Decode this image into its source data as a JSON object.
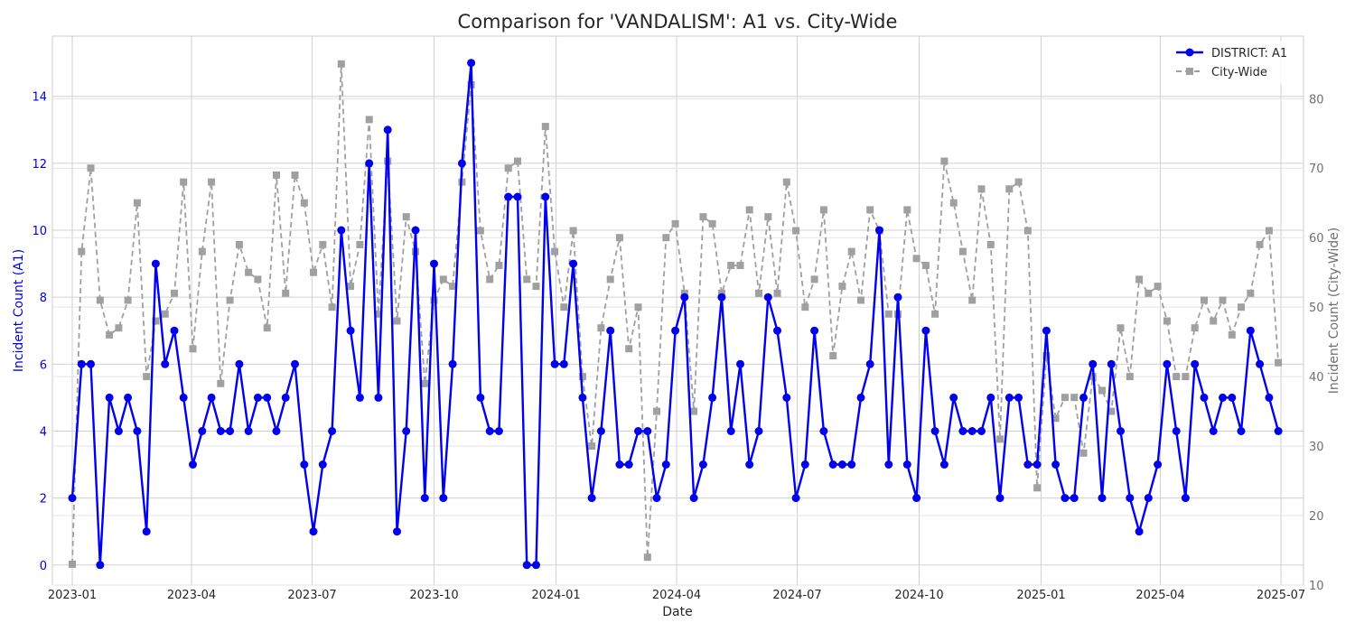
{
  "chart_data": {
    "type": "line",
    "title": "Comparison for 'VANDALISM': A1 vs. City-Wide",
    "xlabel": "Date",
    "ylabel_left": "Incident Count (A1)",
    "ylabel_right": "Incident Count (City-Wide)",
    "x_start": "2023-01-01",
    "x_step": "week",
    "x_ticks": [
      "2023-01",
      "2023-04",
      "2023-07",
      "2023-10",
      "2024-01",
      "2024-04",
      "2024-07",
      "2024-10",
      "2025-01",
      "2025-04",
      "2025-07"
    ],
    "ylim_left": [
      -0.6,
      15.8
    ],
    "ylim_right": [
      10,
      89
    ],
    "yticks_left": [
      0,
      2,
      4,
      6,
      8,
      10,
      12,
      14
    ],
    "yticks_right": [
      10,
      20,
      30,
      40,
      50,
      60,
      70,
      80
    ],
    "grid": true,
    "legend_position": "top-right",
    "colors": {
      "district": "#0000ee",
      "city": "#a0a0a0",
      "left_axis_text": "#0000ee",
      "right_axis_text": "#707070",
      "grid": "#d0d0d0"
    },
    "series": [
      {
        "name": "DISTRICT: A1",
        "axis": "left",
        "style": "solid-circle",
        "values": [
          2,
          6,
          6,
          0,
          5,
          4,
          5,
          4,
          1,
          9,
          6,
          7,
          5,
          3,
          4,
          5,
          4,
          4,
          6,
          4,
          5,
          5,
          4,
          5,
          6,
          3,
          1,
          3,
          4,
          10,
          7,
          5,
          12,
          5,
          13,
          1,
          4,
          10,
          2,
          9,
          2,
          6,
          12,
          15,
          5,
          4,
          4,
          11,
          11,
          0,
          0,
          11,
          6,
          6,
          9,
          5,
          2,
          4,
          7,
          3,
          3,
          4,
          4,
          2,
          3,
          7,
          8,
          2,
          3,
          5,
          8,
          4,
          6,
          3,
          4,
          8,
          7,
          5,
          2,
          3,
          7,
          4,
          3,
          3,
          3,
          5,
          6,
          10,
          3,
          8,
          3,
          2,
          7,
          4,
          3,
          5,
          4,
          4,
          4,
          5,
          2,
          5,
          5,
          3,
          3,
          7,
          3,
          2,
          2,
          5,
          6,
          2,
          6,
          4,
          2,
          1,
          2,
          3,
          6,
          4,
          2,
          6,
          5,
          4,
          5,
          5,
          4,
          7,
          6,
          5,
          4
        ]
      },
      {
        "name": "City-Wide",
        "axis": "right",
        "style": "dashed-square",
        "values": [
          13,
          58,
          70,
          51,
          46,
          47,
          51,
          65,
          40,
          48,
          49,
          52,
          68,
          44,
          58,
          68,
          39,
          51,
          59,
          55,
          54,
          47,
          69,
          52,
          69,
          65,
          55,
          59,
          50,
          85,
          53,
          59,
          77,
          49,
          71,
          48,
          63,
          58,
          39,
          51,
          54,
          53,
          68,
          82,
          61,
          54,
          56,
          70,
          71,
          54,
          53,
          76,
          58,
          50,
          61,
          40,
          30,
          47,
          54,
          60,
          44,
          50,
          14,
          35,
          60,
          62,
          52,
          35,
          63,
          62,
          52,
          56,
          56,
          64,
          52,
          63,
          52,
          68,
          61,
          50,
          54,
          64,
          43,
          53,
          58,
          51,
          64,
          61,
          49,
          49,
          64,
          57,
          56,
          49,
          71,
          65,
          58,
          51,
          67,
          59,
          31,
          67,
          68,
          61,
          24,
          43,
          34,
          37,
          37,
          29,
          40,
          38,
          35,
          47,
          40,
          54,
          52,
          53,
          48,
          40,
          40,
          47,
          51,
          48,
          51,
          46,
          50,
          52,
          59,
          61,
          42
        ]
      }
    ]
  }
}
